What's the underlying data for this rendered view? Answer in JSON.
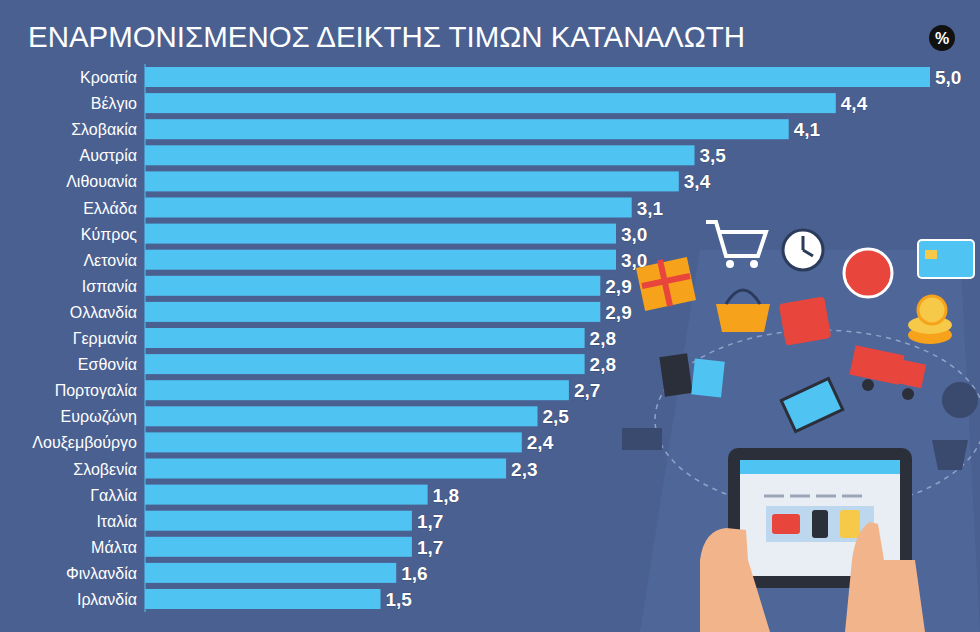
{
  "chart_data": {
    "type": "bar",
    "orientation": "horizontal",
    "title": "ΕΝΑΡΜΟΝΙΣΜΕΝΟΣ ΔΕΙΚΤΗΣ ΤΙΜΩΝ ΚΑΤΑΝΑΛΩΤΗ",
    "annotations": [
      "%"
    ],
    "categories": [
      "Κροατία",
      "Βέλγιο",
      "Σλοβακία",
      "Αυστρία",
      "Λιθουανία",
      "Ελλάδα",
      "Κύπρος",
      "Λετονία",
      "Ισπανία",
      "Ολλανδία",
      "Γερμανία",
      "Εσθονία",
      "Πορτογαλία",
      "Ευρωζώνη",
      "Λουξεμβούργο",
      "Σλοβενία",
      "Γαλλία",
      "Ιταλία",
      "Μάλτα",
      "Φινλανδία",
      "Ιρλανδία"
    ],
    "values": [
      5.0,
      4.4,
      4.1,
      3.5,
      3.4,
      3.1,
      3.0,
      3.0,
      2.9,
      2.9,
      2.8,
      2.8,
      2.7,
      2.5,
      2.4,
      2.3,
      1.8,
      1.7,
      1.7,
      1.6,
      1.5
    ],
    "value_labels": [
      "5,0",
      "4,4",
      "4,1",
      "3,5",
      "3,4",
      "3,1",
      "3,0",
      "3,0",
      "2,9",
      "2,9",
      "2,8",
      "2,8",
      "2,7",
      "2,5",
      "2,4",
      "2,3",
      "1,8",
      "1,7",
      "1,7",
      "1,6",
      "1,5"
    ],
    "color": "#4fc4f3",
    "xlim": [
      0,
      5
    ],
    "data_labels": true,
    "tick_labels": false,
    "grid": false
  }
}
